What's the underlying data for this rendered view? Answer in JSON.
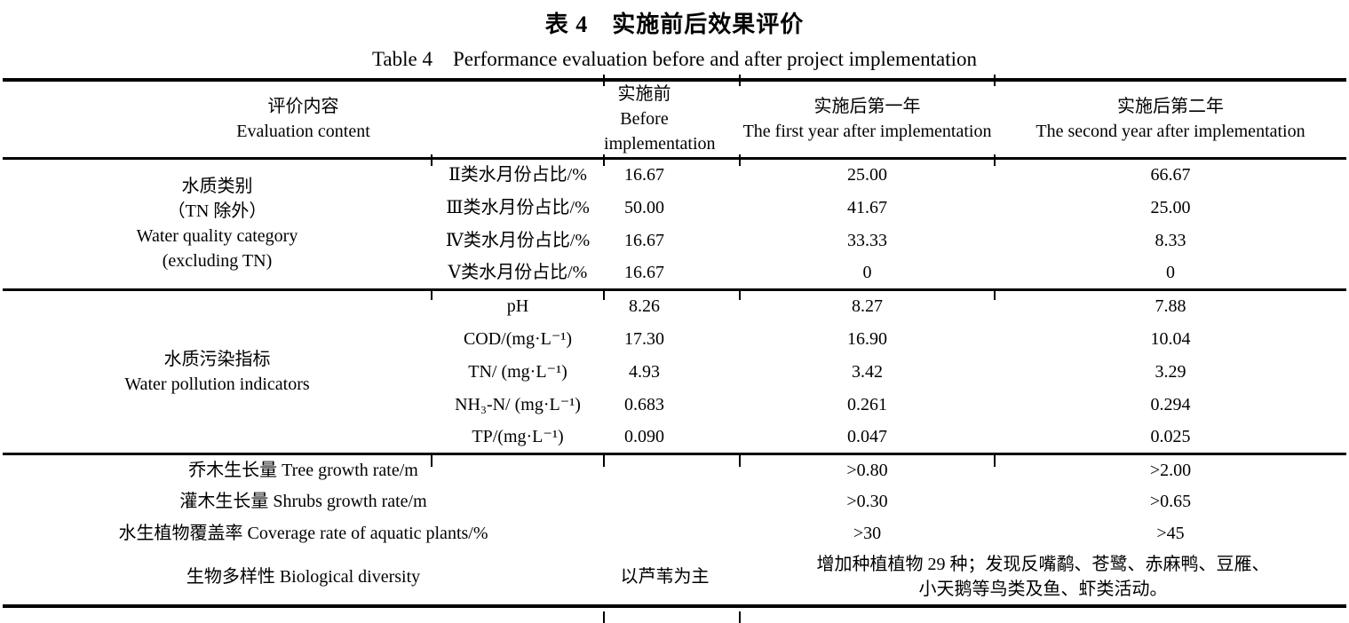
{
  "title": {
    "zh": "表 4　实施前后效果评价",
    "en": "Table 4　Performance evaluation before and after project implementation"
  },
  "header": {
    "eval_zh": "评价内容",
    "eval_en": "Evaluation content",
    "before_zh": "实施前",
    "before_en_line1": "Before",
    "before_en_line2": "implementation",
    "year1_zh": "实施后第一年",
    "year1_en": "The first year after implementation",
    "year2_zh": "实施后第二年",
    "year2_en": "The second year after implementation"
  },
  "water_quality": {
    "label_zh1": "水质类别",
    "label_zh2": "（TN 除外）",
    "label_en1": "Water quality category",
    "label_en2": "(excluding TN)",
    "rows": [
      {
        "indicator": "Ⅱ类水月份占比/%",
        "before": "16.67",
        "year1": "25.00",
        "year2": "66.67"
      },
      {
        "indicator": "Ⅲ类水月份占比/%",
        "before": "50.00",
        "year1": "41.67",
        "year2": "25.00"
      },
      {
        "indicator": "Ⅳ类水月份占比/%",
        "before": "16.67",
        "year1": "33.33",
        "year2": "8.33"
      },
      {
        "indicator": "Ⅴ类水月份占比/%",
        "before": "16.67",
        "year1": "0",
        "year2": "0"
      }
    ]
  },
  "pollution": {
    "label_zh": "水质污染指标",
    "label_en": "Water pollution indicators",
    "rows": [
      {
        "indicator": "pH",
        "before": "8.26",
        "year1": "8.27",
        "year2": "7.88"
      },
      {
        "indicator": "COD/(mg·L⁻¹)",
        "before": "17.30",
        "year1": "16.90",
        "year2": "10.04"
      },
      {
        "indicator": "TN/ (mg·L⁻¹)",
        "before": "4.93",
        "year1": "3.42",
        "year2": "3.29"
      },
      {
        "indicator": "NH₃-N/ (mg·L⁻¹)",
        "before": "0.683",
        "year1": "0.261",
        "year2": "0.294"
      },
      {
        "indicator": "TP/(mg·L⁻¹)",
        "before": "0.090",
        "year1": "0.047",
        "year2": "0.025"
      }
    ]
  },
  "ecology": {
    "rows": [
      {
        "label": "乔木生长量 Tree growth rate/m",
        "year1": ">0.80",
        "year2": ">2.00"
      },
      {
        "label": "灌木生长量 Shrubs growth rate/m",
        "year1": ">0.30",
        "year2": ">0.65"
      },
      {
        "label": "水生植物覆盖率 Coverage rate of aquatic plants/%",
        "year1": ">30",
        "year2": ">45"
      }
    ]
  },
  "biodiversity": {
    "label": "生物多样性 Biological diversity",
    "before": "以芦苇为主",
    "after_line1": "增加种植植物 29 种；发现反嘴鹬、苍鹭、赤麻鸭、豆雁、",
    "after_line2": "小天鹅等鸟类及鱼、虾类活动。"
  }
}
